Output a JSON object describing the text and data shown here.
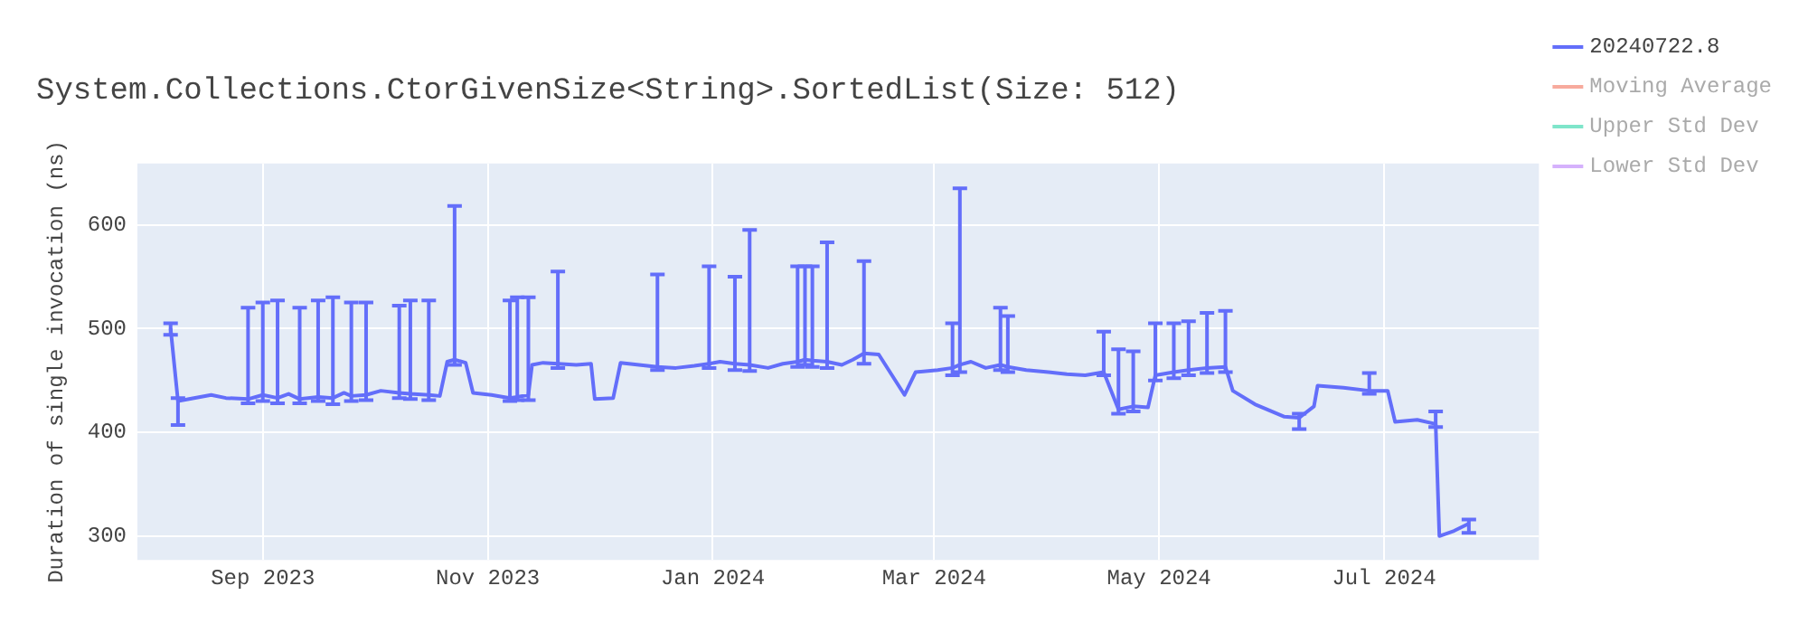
{
  "chart_data": {
    "type": "line",
    "title": "System.Collections.CtorGivenSize<String>.SortedList(Size: 512)",
    "ylabel": "Duration of single invocation (ns)",
    "x": [
      "2023-08-07",
      "2023-08-09",
      "2023-08-12",
      "2023-08-18",
      "2023-08-22",
      "2023-08-28",
      "2023-09-01",
      "2023-09-05",
      "2023-09-08",
      "2023-09-11",
      "2023-09-16",
      "2023-09-20",
      "2023-09-23",
      "2023-09-25",
      "2023-09-29",
      "2023-10-03",
      "2023-10-08",
      "2023-10-11",
      "2023-10-16",
      "2023-10-19",
      "2023-10-21",
      "2023-10-23",
      "2023-10-26",
      "2023-10-28",
      "2023-11-02",
      "2023-11-07",
      "2023-11-09",
      "2023-11-12",
      "2023-11-13",
      "2023-11-16",
      "2023-11-20",
      "2023-11-25",
      "2023-11-29",
      "2023-11-30",
      "2023-12-05",
      "2023-12-07",
      "2023-12-12",
      "2023-12-17",
      "2023-12-22",
      "2023-12-27",
      "2023-12-31",
      "2024-01-03",
      "2024-01-07",
      "2024-01-11",
      "2024-01-16",
      "2024-01-20",
      "2024-01-24",
      "2024-01-26",
      "2024-01-28",
      "2024-02-01",
      "2024-02-05",
      "2024-02-08",
      "2024-02-11",
      "2024-02-15",
      "2024-02-22",
      "2024-02-25",
      "2024-03-02",
      "2024-03-06",
      "2024-03-08",
      "2024-03-11",
      "2024-03-15",
      "2024-03-19",
      "2024-03-21",
      "2024-03-26",
      "2024-04-01",
      "2024-04-06",
      "2024-04-11",
      "2024-04-16",
      "2024-04-20",
      "2024-04-24",
      "2024-04-28",
      "2024-04-30",
      "2024-05-05",
      "2024-05-09",
      "2024-05-14",
      "2024-05-19",
      "2024-05-21",
      "2024-05-27",
      "2024-06-04",
      "2024-06-08",
      "2024-06-12",
      "2024-06-13",
      "2024-06-20",
      "2024-06-27",
      "2024-07-02",
      "2024-07-04",
      "2024-07-10",
      "2024-07-15",
      "2024-07-16",
      "2024-07-20",
      "2024-07-24"
    ],
    "series": [
      {
        "name": "20240722.8",
        "color": "#636efa",
        "values": [
          500,
          430,
          432,
          436,
          433,
          432,
          436,
          433,
          437,
          432,
          434,
          433,
          438,
          435,
          436,
          440,
          438,
          437,
          436,
          435,
          468,
          470,
          467,
          438,
          436,
          433,
          434,
          436,
          465,
          467,
          466,
          465,
          466,
          432,
          433,
          467,
          465,
          463,
          462,
          464,
          466,
          468,
          466,
          465,
          462,
          466,
          468,
          470,
          469,
          468,
          465,
          470,
          476,
          475,
          436,
          458,
          460,
          462,
          465,
          468,
          462,
          465,
          463,
          460,
          458,
          456,
          455,
          458,
          422,
          425,
          424,
          455,
          458,
          460,
          462,
          463,
          440,
          427,
          415,
          414,
          425,
          445,
          443,
          440,
          440,
          410,
          412,
          408,
          300,
          305,
          312
        ],
        "errors": [
          [
            494,
            505
          ],
          [
            407,
            433
          ],
          null,
          null,
          null,
          [
            428,
            520
          ],
          [
            430,
            525
          ],
          [
            428,
            527
          ],
          null,
          [
            428,
            520
          ],
          [
            430,
            527
          ],
          [
            427,
            530
          ],
          null,
          [
            430,
            525
          ],
          [
            431,
            525
          ],
          null,
          [
            433,
            522
          ],
          [
            432,
            527
          ],
          [
            431,
            527
          ],
          null,
          null,
          [
            465,
            618
          ],
          null,
          null,
          null,
          [
            430,
            527
          ],
          [
            431,
            530
          ],
          [
            431,
            530
          ],
          null,
          null,
          [
            462,
            555
          ],
          null,
          null,
          null,
          null,
          null,
          null,
          [
            460,
            552
          ],
          null,
          null,
          [
            462,
            560
          ],
          null,
          [
            460,
            550
          ],
          [
            459,
            595
          ],
          null,
          null,
          [
            463,
            560
          ],
          [
            465,
            560
          ],
          [
            463,
            560
          ],
          [
            462,
            583
          ],
          null,
          null,
          [
            466,
            565
          ],
          null,
          null,
          null,
          null,
          [
            455,
            505
          ],
          [
            458,
            635
          ],
          null,
          null,
          [
            460,
            520
          ],
          [
            458,
            512
          ],
          null,
          null,
          null,
          null,
          [
            455,
            497
          ],
          [
            418,
            480
          ],
          [
            420,
            478
          ],
          null,
          [
            450,
            505
          ],
          [
            452,
            505
          ],
          [
            455,
            507
          ],
          [
            457,
            515
          ],
          [
            458,
            517
          ],
          null,
          null,
          null,
          [
            403,
            418
          ],
          null,
          null,
          null,
          [
            437,
            457
          ],
          null,
          null,
          null,
          [
            405,
            420
          ],
          null,
          null,
          [
            303,
            316
          ]
        ]
      },
      {
        "name": "Moving Average",
        "color": "#ef553b",
        "values": [
          null,
          null,
          null,
          null,
          null,
          null,
          null,
          null,
          null,
          null,
          null,
          null,
          null,
          null,
          null,
          null,
          null,
          null,
          null,
          null,
          null,
          null,
          null,
          null,
          null,
          null,
          null,
          null,
          null,
          null,
          null,
          null,
          null,
          null,
          null,
          null,
          null,
          null,
          null,
          null,
          null,
          null,
          null,
          null,
          null,
          null,
          null,
          null,
          null,
          null,
          null,
          null,
          null,
          null,
          null,
          null,
          null,
          null,
          null,
          null,
          null,
          null,
          null,
          null,
          null,
          null,
          null,
          null,
          null,
          null,
          null,
          null,
          null,
          null,
          null,
          null,
          null,
          null,
          null,
          null,
          null,
          null,
          null,
          null,
          null,
          null,
          null,
          null,
          null,
          null,
          null
        ]
      },
      {
        "name": "Upper Std Dev",
        "color": "#00cc96",
        "values": [
          null,
          null,
          null,
          null,
          null,
          null,
          null,
          null,
          null,
          null,
          null,
          null,
          null,
          null,
          null,
          null,
          null,
          null,
          null,
          null,
          null,
          null,
          null,
          null,
          null,
          null,
          null,
          null,
          null,
          null,
          null,
          null,
          null,
          null,
          null,
          null,
          null,
          null,
          null,
          null,
          null,
          null,
          null,
          null,
          null,
          null,
          null,
          null,
          null,
          null,
          null,
          null,
          null,
          null,
          null,
          null,
          null,
          null,
          null,
          null,
          null,
          null,
          null,
          null,
          null,
          null,
          null,
          null,
          null,
          null,
          null,
          null,
          null,
          null,
          null,
          null,
          null,
          null,
          null,
          null,
          null,
          null,
          null,
          null,
          null,
          null,
          null,
          null,
          null,
          null,
          null
        ]
      },
      {
        "name": "Lower Std Dev",
        "color": "#ab63fa",
        "values": [
          null,
          null,
          null,
          null,
          null,
          null,
          null,
          null,
          null,
          null,
          null,
          null,
          null,
          null,
          null,
          null,
          null,
          null,
          null,
          null,
          null,
          null,
          null,
          null,
          null,
          null,
          null,
          null,
          null,
          null,
          null,
          null,
          null,
          null,
          null,
          null,
          null,
          null,
          null,
          null,
          null,
          null,
          null,
          null,
          null,
          null,
          null,
          null,
          null,
          null,
          null,
          null,
          null,
          null,
          null,
          null,
          null,
          null,
          null,
          null,
          null,
          null,
          null,
          null,
          null,
          null,
          null,
          null,
          null,
          null,
          null,
          null,
          null,
          null,
          null,
          null,
          null,
          null,
          null,
          null,
          null,
          null,
          null,
          null,
          null,
          null,
          null,
          null,
          null,
          null,
          null
        ]
      }
    ],
    "xlim": [
      "2023-07-29",
      "2024-08-12"
    ],
    "xticks": [
      {
        "value": "2023-09-01",
        "label": "Sep 2023"
      },
      {
        "value": "2023-11-01",
        "label": "Nov 2023"
      },
      {
        "value": "2024-01-01",
        "label": "Jan 2024"
      },
      {
        "value": "2024-03-01",
        "label": "Mar 2024"
      },
      {
        "value": "2024-05-01",
        "label": "May 2024"
      },
      {
        "value": "2024-07-01",
        "label": "Jul 2024"
      }
    ],
    "ylim": [
      277,
      659
    ],
    "yticks": [
      300,
      400,
      500,
      600
    ],
    "grid": true,
    "legend": "right",
    "marker": "none",
    "line_style": "solid"
  }
}
